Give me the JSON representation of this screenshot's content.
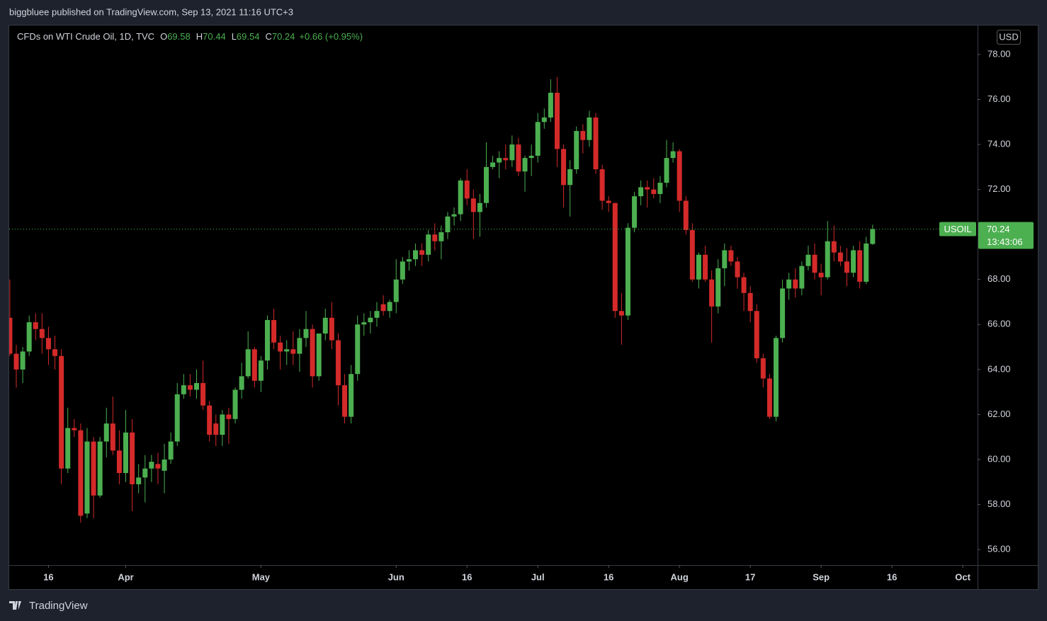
{
  "header": "biggbluee published on TradingView.com, Sep 13, 2021 11:16 UTC+3",
  "footer": "TradingView",
  "chart_data": {
    "type": "candlestick",
    "title": "CFDs on WTI Crude Oil, 1D, TVC",
    "ohlc_labels": [
      "O",
      "H",
      "L",
      "C"
    ],
    "change": "+0.66 (+0.95%)",
    "symbol": "USOIL",
    "countdown": "13:43:06",
    "currency": "USD",
    "up_color": "#4caf50",
    "down_color": "#d42a2a",
    "grid": false,
    "x": [
      0,
      1,
      2,
      3,
      4,
      5,
      6,
      7,
      8,
      9,
      10,
      11,
      12,
      13,
      14,
      15,
      16,
      17,
      18,
      19,
      20,
      21,
      22,
      23,
      24,
      25,
      26,
      27,
      28,
      29,
      30,
      31,
      32,
      33,
      34,
      35,
      36,
      37,
      38,
      39,
      40,
      41,
      42,
      43,
      44,
      45,
      46,
      47,
      48,
      49,
      50,
      51,
      52,
      53,
      54,
      55,
      56,
      57,
      58,
      59,
      60,
      61,
      62,
      63,
      64,
      65,
      66,
      67,
      68,
      69,
      70,
      71,
      72,
      73,
      74,
      75,
      76,
      77,
      78,
      79,
      80,
      81,
      82,
      83,
      84,
      85,
      86,
      87,
      88,
      89,
      90,
      91,
      92,
      93,
      94,
      95,
      96,
      97,
      98,
      99,
      100,
      101,
      102,
      103,
      104,
      105,
      106,
      107,
      108,
      109,
      110,
      111,
      112,
      113,
      114,
      115,
      116,
      117,
      118,
      119,
      120,
      121,
      122,
      123,
      124,
      125,
      126,
      127,
      128,
      129,
      130,
      131,
      132,
      133,
      134
    ],
    "open": [
      66.3,
      64.7,
      64.0,
      64.8,
      66.1,
      65.8,
      65.4,
      64.9,
      64.6,
      59.6,
      61.4,
      61.3,
      57.6,
      60.8,
      58.4,
      60.8,
      61.6,
      60.4,
      59.4,
      61.2,
      58.9,
      59.2,
      59.6,
      59.8,
      59.5,
      60.0,
      60.8,
      62.9,
      63.3,
      63.1,
      63.4,
      62.4,
      61.6,
      61.1,
      62.0,
      61.8,
      63.1,
      63.7,
      64.9,
      63.5,
      64.4,
      66.2,
      65.2,
      64.8,
      64.9,
      64.7,
      65.4,
      65.8,
      63.7,
      65.6,
      66.3,
      65.3,
      63.3,
      61.9,
      63.8,
      66.0,
      66.1,
      66.3,
      66.9,
      66.6,
      67.0,
      68.0,
      68.8,
      68.9,
      69.3,
      69.1,
      70.0,
      69.7,
      70.1,
      70.8,
      70.9,
      72.4,
      71.6,
      71.0,
      71.4,
      73.0,
      73.2,
      73.4,
      73.3,
      74.0,
      72.8,
      73.4,
      73.5,
      75.0,
      75.2,
      76.3,
      73.8,
      72.2,
      72.9,
      74.6,
      74.2,
      75.2,
      72.9,
      71.5,
      71.4,
      66.6,
      66.4,
      70.3,
      71.7,
      72.1,
      72.0,
      71.8,
      72.3,
      73.4,
      73.7,
      71.5,
      70.2,
      68.0,
      69.1,
      68.0,
      66.8,
      68.5,
      69.3,
      68.8,
      68.1,
      67.4,
      66.6,
      64.5,
      63.6,
      61.9,
      65.4,
      67.6,
      68.0,
      67.6,
      68.6,
      69.1,
      68.3,
      68.1,
      69.7,
      69.2,
      68.8,
      68.3,
      69.3,
      67.9,
      69.58
    ],
    "high": [
      68.0,
      65.1,
      65.0,
      66.4,
      66.5,
      66.5,
      65.9,
      65.5,
      64.9,
      62.3,
      61.8,
      61.6,
      61.4,
      61.0,
      61.0,
      62.3,
      62.8,
      61.3,
      62.2,
      61.8,
      59.8,
      60.2,
      60.2,
      60.3,
      60.7,
      61.2,
      63.4,
      63.8,
      63.8,
      64.0,
      64.4,
      62.6,
      62.0,
      62.2,
      62.3,
      63.2,
      64.3,
      65.7,
      65.0,
      64.6,
      66.4,
      66.7,
      65.5,
      65.3,
      65.7,
      65.8,
      66.6,
      66.0,
      65.6,
      66.7,
      67.0,
      65.6,
      63.8,
      64.2,
      66.4,
      66.5,
      66.6,
      67.0,
      67.3,
      67.1,
      68.9,
      69.0,
      69.3,
      69.6,
      69.6,
      70.2,
      70.5,
      70.4,
      71.0,
      71.2,
      72.5,
      72.9,
      72.0,
      71.8,
      74.1,
      73.5,
      73.7,
      74.0,
      74.4,
      74.3,
      73.5,
      74.0,
      75.4,
      75.6,
      76.9,
      77.0,
      74.0,
      73.3,
      74.8,
      74.9,
      75.5,
      75.4,
      73.1,
      71.7,
      71.4,
      67.4,
      70.5,
      71.9,
      72.4,
      72.4,
      72.5,
      72.6,
      74.2,
      74.1,
      73.8,
      71.7,
      70.5,
      69.2,
      69.5,
      68.4,
      68.9,
      69.6,
      69.5,
      69.0,
      68.3,
      67.7,
      66.9,
      64.7,
      63.8,
      65.5,
      68.0,
      68.3,
      68.5,
      68.8,
      69.5,
      69.6,
      68.7,
      70.6,
      70.4,
      69.5,
      69.4,
      69.5,
      69.7,
      69.9,
      70.44
    ],
    "low": [
      64.6,
      63.2,
      63.4,
      64.6,
      65.3,
      64.7,
      64.2,
      64.0,
      58.9,
      59.4,
      61.0,
      57.2,
      57.4,
      57.4,
      58.3,
      60.1,
      60.2,
      58.9,
      59.0,
      57.7,
      58.5,
      58.1,
      59.0,
      58.9,
      58.5,
      59.8,
      60.6,
      62.7,
      62.8,
      62.7,
      62.2,
      60.8,
      60.6,
      60.6,
      60.7,
      61.6,
      62.7,
      63.6,
      63.2,
      63.0,
      64.0,
      64.9,
      64.0,
      64.2,
      64.2,
      63.9,
      65.0,
      63.2,
      63.5,
      65.3,
      64.9,
      62.4,
      61.6,
      61.6,
      63.5,
      65.5,
      65.6,
      65.9,
      66.4,
      66.3,
      66.5,
      67.8,
      68.4,
      68.6,
      68.6,
      68.8,
      69.3,
      68.9,
      69.8,
      70.4,
      70.6,
      71.3,
      69.8,
      69.9,
      71.2,
      72.9,
      72.5,
      72.9,
      73.0,
      72.6,
      71.9,
      72.6,
      73.2,
      74.7,
      75.0,
      73.0,
      71.2,
      70.8,
      72.7,
      73.6,
      73.9,
      72.7,
      71.1,
      71.0,
      66.3,
      65.1,
      66.2,
      70.1,
      71.3,
      71.2,
      71.6,
      71.4,
      72.1,
      73.2,
      71.0,
      70.0,
      67.9,
      67.6,
      67.9,
      65.2,
      66.5,
      67.7,
      68.6,
      67.6,
      66.6,
      66.1,
      64.3,
      63.2,
      61.8,
      61.7,
      65.2,
      67.1,
      67.2,
      67.3,
      68.4,
      68.0,
      67.3,
      68.0,
      68.8,
      68.6,
      67.7,
      68.1,
      67.6,
      67.8,
      69.54
    ],
    "close": [
      64.7,
      64.0,
      64.8,
      66.1,
      65.8,
      65.4,
      64.9,
      64.6,
      59.6,
      61.4,
      61.3,
      57.5,
      60.8,
      58.4,
      60.8,
      61.6,
      60.4,
      59.4,
      61.2,
      58.9,
      59.2,
      59.6,
      59.9,
      59.6,
      60.0,
      60.8,
      62.9,
      63.3,
      63.1,
      63.4,
      62.4,
      61.1,
      61.1,
      62.0,
      61.8,
      63.1,
      63.7,
      64.9,
      63.5,
      64.4,
      66.2,
      65.2,
      64.8,
      64.9,
      64.7,
      65.4,
      65.8,
      63.7,
      65.6,
      66.3,
      65.3,
      63.3,
      61.9,
      63.8,
      66.0,
      66.1,
      66.3,
      66.6,
      66.6,
      67.0,
      68.0,
      68.8,
      68.9,
      69.3,
      69.1,
      70.0,
      69.7,
      70.1,
      70.8,
      70.9,
      72.4,
      71.6,
      71.0,
      71.4,
      73.0,
      73.2,
      73.4,
      73.3,
      74.0,
      72.8,
      73.4,
      73.5,
      75.0,
      75.2,
      76.3,
      73.8,
      72.2,
      72.9,
      74.6,
      74.2,
      75.2,
      72.9,
      71.5,
      71.4,
      66.6,
      66.4,
      70.3,
      71.7,
      72.1,
      72.0,
      71.8,
      72.3,
      73.4,
      73.7,
      71.5,
      70.2,
      68.0,
      69.1,
      68.0,
      66.8,
      68.5,
      69.3,
      68.8,
      68.1,
      67.4,
      66.6,
      64.5,
      63.6,
      61.9,
      65.4,
      67.6,
      68.0,
      67.6,
      68.6,
      69.1,
      68.3,
      68.1,
      69.7,
      69.2,
      68.8,
      68.3,
      69.3,
      67.9,
      69.6,
      70.24
    ],
    "xlim": [
      -0.1,
      150.3
    ],
    "xticks": [
      {
        "value": 6,
        "label": "16"
      },
      {
        "value": 18,
        "label": "Apr"
      },
      {
        "value": 39,
        "label": "May"
      },
      {
        "value": 60,
        "label": "Jun"
      },
      {
        "value": 71,
        "label": "16"
      },
      {
        "value": 82,
        "label": "Jul"
      },
      {
        "value": 93,
        "label": "16"
      },
      {
        "value": 104,
        "label": "Aug"
      },
      {
        "value": 115,
        "label": "17"
      },
      {
        "value": 126,
        "label": "Sep"
      },
      {
        "value": 137,
        "label": "16"
      },
      {
        "value": 148,
        "label": "Oct"
      }
    ],
    "ylim": [
      55.31,
      79.32
    ],
    "yticks": [
      {
        "value": 56,
        "label": "56.00"
      },
      {
        "value": 58,
        "label": "58.00"
      },
      {
        "value": 60,
        "label": "60.00"
      },
      {
        "value": 62,
        "label": "62.00"
      },
      {
        "value": 64,
        "label": "64.00"
      },
      {
        "value": 66,
        "label": "66.00"
      },
      {
        "value": 68,
        "label": "68.00"
      },
      {
        "value": 70,
        "label": "70.00"
      },
      {
        "value": 72,
        "label": "72.00"
      },
      {
        "value": 74,
        "label": "74.00"
      },
      {
        "value": 76,
        "label": "76.00"
      },
      {
        "value": 78,
        "label": "78.00"
      }
    ]
  }
}
